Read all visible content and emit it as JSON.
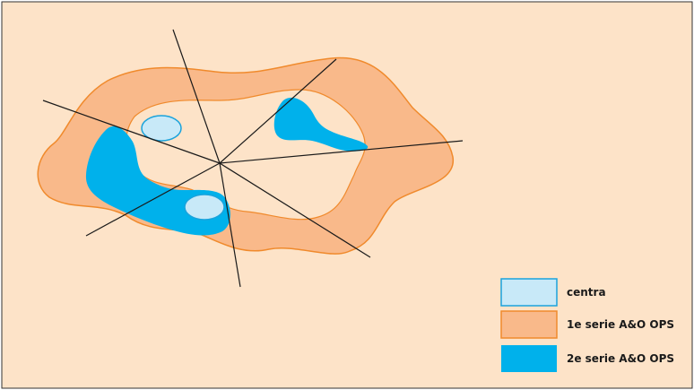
{
  "colors": {
    "background": "#fde3c8",
    "border": "#333333",
    "ring_fill": "#f9b98a",
    "ring_stroke": "#f08a2c",
    "inner_fill": "#fde3c8",
    "second_series_fill": "#00b1eb",
    "center_fill": "#c8e9f8",
    "center_stroke": "#1aa3dc",
    "lines": "#1a1a1a"
  },
  "legend": {
    "items": [
      {
        "key": "centra",
        "label": "centra"
      },
      {
        "key": "first",
        "label": "1e serie A&O OPS"
      },
      {
        "key": "second",
        "label": "2e serie A&O OPS"
      }
    ]
  }
}
